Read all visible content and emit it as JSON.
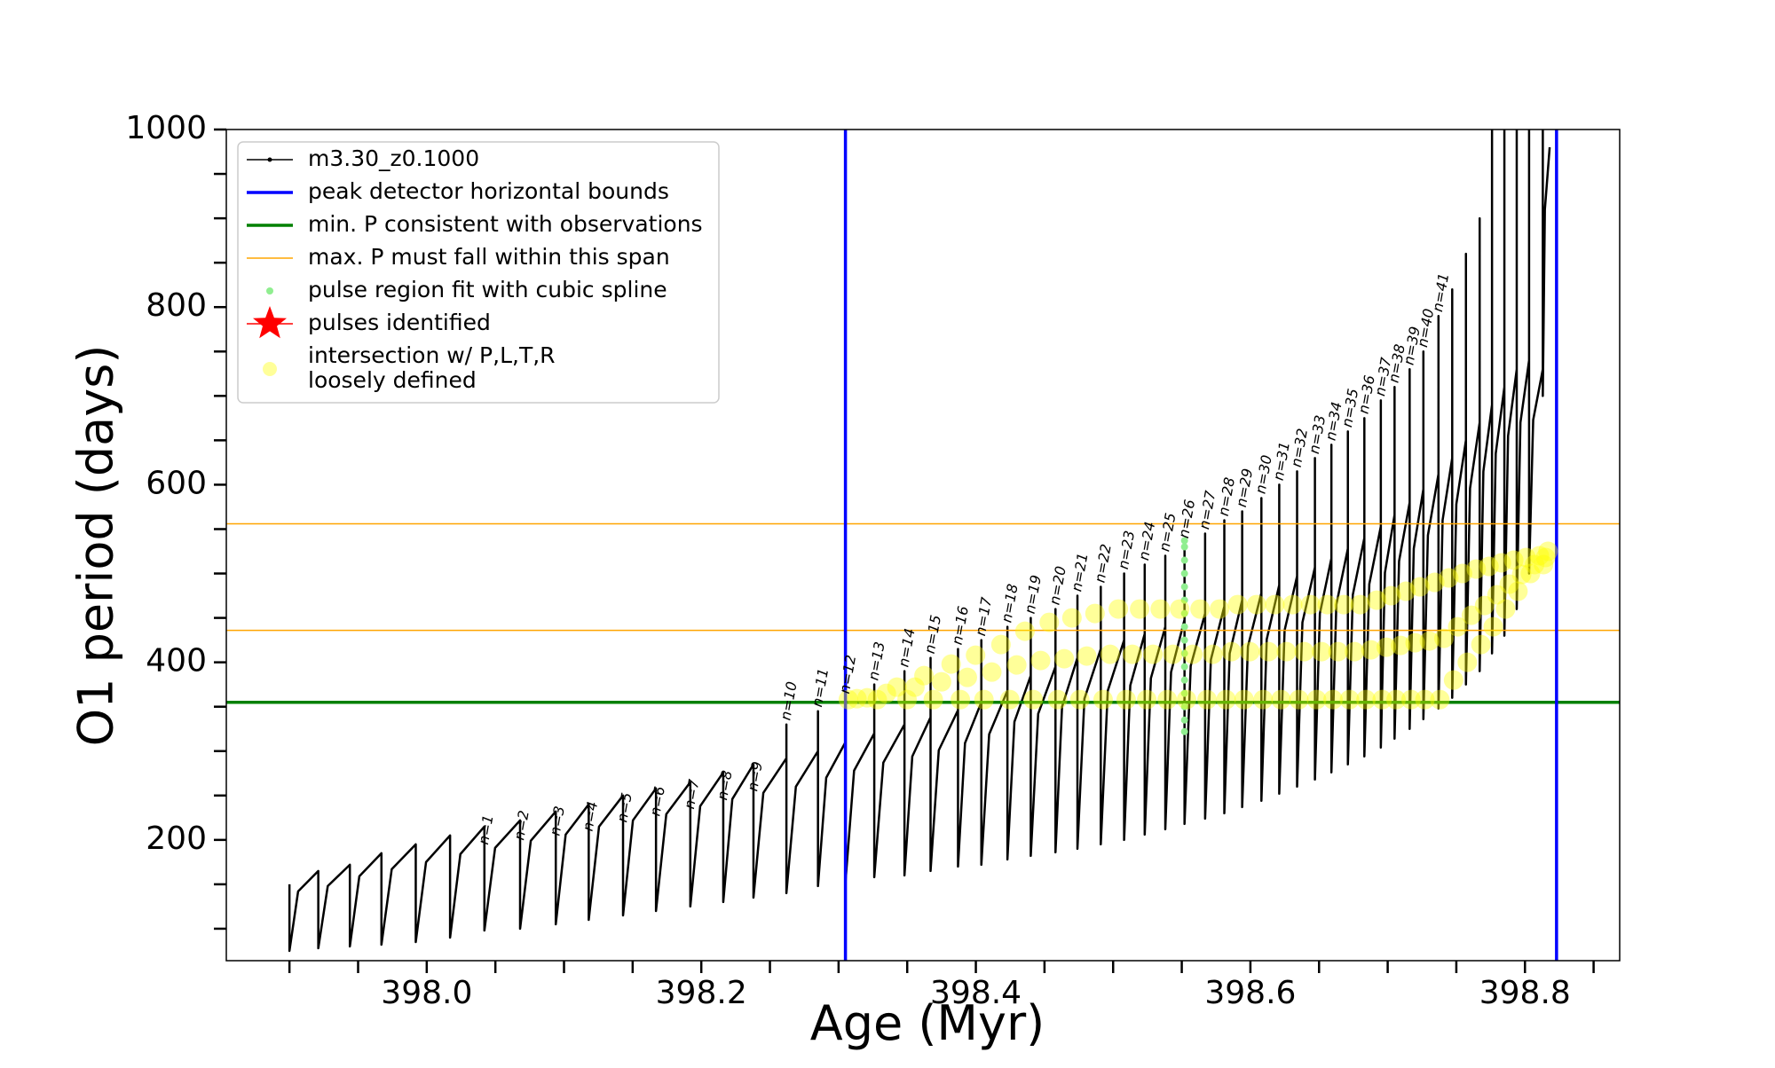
{
  "chart_data": {
    "type": "line",
    "xlabel": "Age (Myr)",
    "ylabel": "O1 period (days)",
    "xlim": [
      397.854,
      398.869
    ],
    "ylim": [
      64,
      1000
    ],
    "xticks": [
      {
        "value": 398.0,
        "label": "398.0"
      },
      398.2,
      398.4,
      398.6,
      398.8
    ],
    "xminor": [
      397.9,
      397.95,
      398.05,
      398.1,
      398.15,
      398.25,
      398.3,
      398.35,
      398.45,
      398.5,
      398.55,
      398.65,
      398.7,
      398.75,
      398.85
    ],
    "yticks": [
      200,
      400,
      600,
      800,
      1000
    ],
    "yminor": [
      100,
      150,
      250,
      300,
      350,
      450,
      500,
      550,
      650,
      700,
      750,
      850,
      900,
      950
    ],
    "legend": "upper left",
    "series": [
      {
        "name": "m3.30_z0.1000",
        "kind": "line",
        "color": "#000000",
        "linewidth": 2.5,
        "x": [
          397.9,
          397.9,
          397.9063,
          397.921,
          397.921,
          397.921,
          397.9279,
          397.944,
          397.944,
          397.944,
          397.9509,
          397.967,
          397.967,
          397.967,
          397.9745,
          397.992,
          397.992,
          397.992,
          397.9995,
          398.017,
          398.017,
          398.017,
          398.0245,
          398.042,
          398.042,
          398.042,
          398.0498,
          398.068,
          398.068,
          398.068,
          398.0758,
          398.094,
          398.094,
          398.094,
          398.1012,
          398.118,
          398.118,
          398.118,
          398.1255,
          398.143,
          398.143,
          398.143,
          398.1502,
          398.167,
          398.167,
          398.167,
          398.1745,
          398.192,
          398.192,
          398.192,
          398.1992,
          398.216,
          398.216,
          398.216,
          398.2226,
          398.238,
          398.238,
          398.238,
          398.2452,
          398.262,
          398.262,
          398.262,
          398.2689,
          398.285,
          398.285,
          398.285,
          398.291,
          398.305,
          398.305,
          398.305,
          398.3113,
          398.326,
          398.326,
          398.326,
          398.3326,
          398.348,
          398.348,
          398.348,
          398.3537,
          398.367,
          398.367,
          398.367,
          398.373,
          398.387,
          398.387,
          398.387,
          398.3921,
          398.404,
          398.404,
          398.404,
          398.4097,
          398.423,
          398.423,
          398.423,
          398.4281,
          398.44,
          398.44,
          398.44,
          398.4454,
          398.458,
          398.458,
          398.458,
          398.4628,
          398.474,
          398.474,
          398.474,
          398.4791,
          398.491,
          398.491,
          398.491,
          398.4961,
          398.508,
          398.508,
          398.508,
          398.5125,
          398.523,
          398.523,
          398.523,
          398.5275,
          398.538,
          398.538,
          398.538,
          398.5422,
          398.552,
          398.552,
          398.552,
          398.5565,
          398.567,
          398.567,
          398.567,
          398.5712,
          398.581,
          398.581,
          398.581,
          398.5849,
          398.594,
          398.594,
          398.594,
          398.5982,
          398.608,
          398.608,
          398.608,
          398.6119,
          398.621,
          398.621,
          398.621,
          398.6249,
          398.634,
          398.634,
          398.634,
          398.6379,
          398.647,
          398.647,
          398.647,
          398.6506,
          398.659,
          398.659,
          398.659,
          398.6626,
          398.671,
          398.671,
          398.671,
          398.6746,
          398.683,
          398.683,
          398.683,
          398.6866,
          398.695,
          398.695,
          398.695,
          398.698,
          398.705,
          398.705,
          398.705,
          398.7083,
          398.716,
          398.716,
          398.716,
          398.719,
          398.726,
          398.726,
          398.726,
          398.7293,
          398.737,
          398.737,
          398.737,
          398.74,
          398.747,
          398.747,
          398.747,
          398.75,
          398.757,
          398.757,
          398.757,
          398.76,
          398.767,
          398.767,
          398.767,
          398.7697,
          398.776,
          398.776,
          398.776,
          398.7787,
          398.785,
          398.785,
          398.785,
          398.7877,
          398.794,
          398.794,
          398.794,
          398.7967,
          398.803,
          398.803,
          398.803,
          398.806,
          398.813,
          398.813,
          398.813,
          398.8145,
          398.818
        ],
        "y": [
          150,
          75,
          142,
          165,
          150,
          78,
          148,
          172,
          155,
          80,
          159,
          185,
          165,
          82,
          167,
          195,
          170,
          85,
          175,
          205,
          180,
          90,
          184,
          215,
          190,
          98,
          191,
          222,
          195,
          100,
          199,
          232,
          200,
          105,
          206,
          240,
          205,
          110,
          215,
          250,
          215,
          115,
          222,
          258,
          222,
          120,
          229,
          265,
          230,
          125,
          238,
          276,
          240,
          130,
          246,
          285,
          250,
          135,
          253,
          292,
          330,
          140,
          260,
          300,
          345,
          148,
          270,
          310,
          360,
          152,
          278,
          320,
          375,
          158,
          287,
          330,
          390,
          160,
          294,
          338,
          405,
          165,
          301,
          346,
          415,
          170,
          309,
          355,
          425,
          172,
          319,
          368,
          440,
          178,
          333,
          385,
          450,
          182,
          342,
          395,
          460,
          186,
          350,
          405,
          475,
          190,
          359,
          415,
          485,
          195,
          368,
          425,
          500,
          200,
          374,
          432,
          510,
          206,
          382,
          440,
          520,
          212,
          389,
          448,
          535,
          218,
          396,
          455,
          545,
          224,
          403,
          463,
          560,
          230,
          410,
          470,
          570,
          237,
          418,
          478,
          585,
          244,
          426,
          487,
          600,
          252,
          436,
          497,
          615,
          260,
          445,
          507,
          630,
          268,
          455,
          517,
          645,
          276,
          465,
          528,
          660,
          285,
          476,
          540,
          675,
          294,
          488,
          553,
          695,
          304,
          501,
          566,
          710,
          314,
          514,
          580,
          730,
          325,
          528,
          595,
          750,
          336,
          543,
          612,
          790,
          348,
          560,
          630,
          820,
          360,
          578,
          650,
          860,
          375,
          596,
          670,
          900,
          390,
          615,
          690,
          1000,
          410,
          635,
          710,
          1000,
          430,
          655,
          730,
          1000,
          460,
          670,
          740,
          1000,
          500,
          673,
          730,
          1000,
          700,
          910,
          980
        ]
      },
      {
        "name": "peak detector horizontal bounds",
        "kind": "vline",
        "color": "#0000ff",
        "linewidth": 3.5,
        "values": [
          398.305,
          398.823
        ]
      },
      {
        "name": "min. P consistent with observations",
        "kind": "hline",
        "color": "#008000",
        "linewidth": 3.5,
        "values": [
          355
        ]
      },
      {
        "name": "max. P must fall within this span",
        "kind": "hline",
        "color": "#ffa500",
        "linewidth": 1.5,
        "values": [
          436,
          556
        ]
      },
      {
        "name": "pulse region fit with cubic spline",
        "kind": "scatter",
        "color": "#90ee90",
        "markersize": 4,
        "x": [
          398.552,
          398.552,
          398.552,
          398.552,
          398.552,
          398.552,
          398.552,
          398.552,
          398.552,
          398.552,
          398.552,
          398.552,
          398.552,
          398.552,
          398.552,
          398.552
        ],
        "y": [
          322,
          335,
          350,
          365,
          380,
          395,
          410,
          425,
          440,
          455,
          470,
          485,
          500,
          515,
          530,
          537
        ]
      },
      {
        "name": "pulses identified",
        "kind": "star",
        "color": "#ff0000",
        "markersize": 20,
        "x": [],
        "y": []
      },
      {
        "name": "intersection w/ P,L,T,R\nloosely defined",
        "kind": "scatter",
        "color": "#ffff00",
        "markersize": 11,
        "x": [
          398.3071,
          398.3134,
          398.3208,
          398.3282,
          398.3348,
          398.3425,
          398.3499,
          398.3556,
          398.3622,
          398.369,
          398.375,
          398.382,
          398.3887,
          398.3938,
          398.3998,
          398.4059,
          398.4116,
          398.4183,
          398.4247,
          398.4298,
          398.4358,
          398.4418,
          398.4472,
          398.4535,
          398.4596,
          398.4644,
          398.47,
          398.4757,
          398.4808,
          398.4868,
          398.4927,
          398.4978,
          398.5038,
          398.5095,
          398.514,
          398.5193,
          398.5245,
          398.529,
          398.5343,
          398.5394,
          398.5436,
          398.5485,
          398.5535,
          398.558,
          398.5633,
          398.5684,
          398.5726,
          398.5775,
          398.5823,
          398.5862,
          398.5908,
          398.5954,
          398.5996,
          398.6045,
          398.6093,
          398.6132,
          398.6178,
          398.6223,
          398.6262,
          398.6308,
          398.6353,
          398.6392,
          398.6438,
          398.6482,
          398.6518,
          398.656,
          398.6602,
          398.6638,
          398.668,
          398.6722,
          398.6758,
          398.68,
          398.6842,
          398.6878,
          398.692,
          398.696,
          398.699,
          398.7025,
          398.7061,
          398.7094,
          398.7133,
          398.717,
          398.72,
          398.7235,
          398.7271,
          398.7304,
          398.7343,
          398.738,
          398.741,
          398.7445,
          398.748,
          398.751,
          398.7545,
          398.758,
          398.761,
          398.7645,
          398.7679,
          398.7706,
          398.7738,
          398.7769,
          398.7796,
          398.7828,
          398.7859,
          398.7886,
          398.7918,
          398.7949,
          398.7976,
          398.8008,
          398.804,
          398.807,
          398.8105,
          398.8135,
          398.815,
          398.8168
        ],
        "y": [
          358,
          359,
          360,
          358,
          365,
          372,
          358,
          372,
          385,
          358,
          378,
          398,
          358,
          383,
          408,
          358,
          389,
          420,
          358,
          397,
          435,
          358,
          402,
          445,
          358,
          404,
          450,
          358,
          407,
          455,
          358,
          409,
          460,
          358,
          409,
          460,
          358,
          409,
          460,
          358,
          409,
          460,
          358,
          409,
          460,
          358,
          409,
          460,
          358,
          412,
          465,
          358,
          412,
          465,
          358,
          412,
          465,
          358,
          412,
          465,
          358,
          412,
          465,
          358,
          412,
          465,
          358,
          412,
          465,
          358,
          412,
          465,
          358,
          414,
          470,
          358,
          417,
          475,
          358,
          419,
          480,
          358,
          422,
          485,
          358,
          424,
          490,
          358,
          427,
          495,
          380,
          440,
          500,
          400,
          453,
          505,
          420,
          464,
          508,
          440,
          476,
          512,
          460,
          488,
          515,
          480,
          499,
          518,
          500,
          510,
          520,
          510,
          518,
          525
        ]
      }
    ],
    "annotations": [
      {
        "text": "n=1",
        "x": 398.042,
        "y": 190
      },
      {
        "text": "n=2",
        "x": 398.068,
        "y": 195
      },
      {
        "text": "n=3",
        "x": 398.094,
        "y": 200
      },
      {
        "text": "n=4",
        "x": 398.118,
        "y": 205
      },
      {
        "text": "n=5",
        "x": 398.143,
        "y": 215
      },
      {
        "text": "n=6",
        "x": 398.167,
        "y": 222
      },
      {
        "text": "n=7",
        "x": 398.192,
        "y": 230
      },
      {
        "text": "n=8",
        "x": 398.216,
        "y": 240
      },
      {
        "text": "n=9",
        "x": 398.238,
        "y": 250
      },
      {
        "text": "n=10",
        "x": 398.262,
        "y": 330
      },
      {
        "text": "n=11",
        "x": 398.285,
        "y": 345
      },
      {
        "text": "n=12",
        "x": 398.305,
        "y": 360
      },
      {
        "text": "n=13",
        "x": 398.326,
        "y": 375
      },
      {
        "text": "n=14",
        "x": 398.348,
        "y": 390
      },
      {
        "text": "n=15",
        "x": 398.367,
        "y": 405
      },
      {
        "text": "n=16",
        "x": 398.387,
        "y": 415
      },
      {
        "text": "n=17",
        "x": 398.404,
        "y": 425
      },
      {
        "text": "n=18",
        "x": 398.423,
        "y": 440
      },
      {
        "text": "n=19",
        "x": 398.44,
        "y": 450
      },
      {
        "text": "n=20",
        "x": 398.458,
        "y": 460
      },
      {
        "text": "n=21",
        "x": 398.474,
        "y": 475
      },
      {
        "text": "n=22",
        "x": 398.491,
        "y": 485
      },
      {
        "text": "n=23",
        "x": 398.508,
        "y": 500
      },
      {
        "text": "n=24",
        "x": 398.523,
        "y": 510
      },
      {
        "text": "n=25",
        "x": 398.538,
        "y": 520
      },
      {
        "text": "n=26",
        "x": 398.552,
        "y": 535
      },
      {
        "text": "n=27",
        "x": 398.567,
        "y": 545
      },
      {
        "text": "n=28",
        "x": 398.581,
        "y": 560
      },
      {
        "text": "n=29",
        "x": 398.594,
        "y": 570
      },
      {
        "text": "n=30",
        "x": 398.608,
        "y": 585
      },
      {
        "text": "n=31",
        "x": 398.621,
        "y": 600
      },
      {
        "text": "n=32",
        "x": 398.634,
        "y": 615
      },
      {
        "text": "n=33",
        "x": 398.647,
        "y": 630
      },
      {
        "text": "n=34",
        "x": 398.659,
        "y": 645
      },
      {
        "text": "n=35",
        "x": 398.671,
        "y": 660
      },
      {
        "text": "n=36",
        "x": 398.683,
        "y": 675
      },
      {
        "text": "n=37",
        "x": 398.695,
        "y": 695
      },
      {
        "text": "n=38",
        "x": 398.705,
        "y": 710
      },
      {
        "text": "n=39",
        "x": 398.716,
        "y": 730
      },
      {
        "text": "n=40",
        "x": 398.726,
        "y": 750
      },
      {
        "text": "n=41",
        "x": 398.737,
        "y": 790
      }
    ]
  }
}
